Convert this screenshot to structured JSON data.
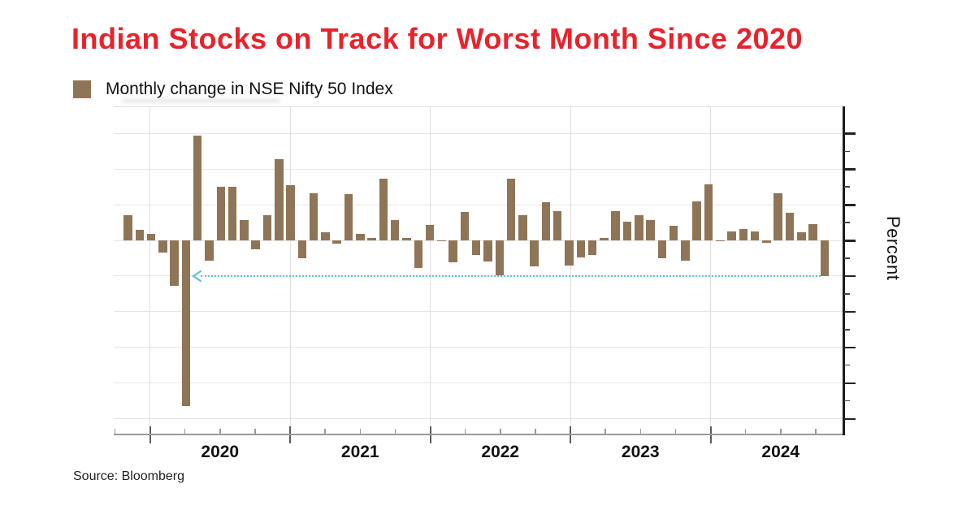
{
  "header": {
    "title": "Indian Stocks on Track for Worst Month Since 2020",
    "title_color": "#e8232b"
  },
  "legend": {
    "label": "Monthly change in NSE Nifty 50 Index",
    "swatch_color": "#8f7557"
  },
  "source": {
    "text": "Source: Bloomberg"
  },
  "chart_data": {
    "type": "bar",
    "title": "Indian Stocks on Track for Worst Month Since 2020",
    "series_name": "Monthly change in NSE Nifty 50 Index",
    "ylabel": "Percent",
    "xlabel": "",
    "x_tick_labels": [
      "2020",
      "2021",
      "2022",
      "2023",
      "2024"
    ],
    "ylim": [
      -27.5,
      18.5
    ],
    "y_major_step": 5,
    "y_minor_step": 2.5,
    "grid": "on-light",
    "legend_position": "top-left",
    "bar_color": "#8f7557",
    "months": [
      "2019-10",
      "2019-11",
      "2019-12",
      "2020-01",
      "2020-02",
      "2020-03",
      "2020-04",
      "2020-05",
      "2020-06",
      "2020-07",
      "2020-08",
      "2020-09",
      "2020-10",
      "2020-11",
      "2020-12",
      "2021-01",
      "2021-02",
      "2021-03",
      "2021-04",
      "2021-05",
      "2021-06",
      "2021-07",
      "2021-08",
      "2021-09",
      "2021-10",
      "2021-11",
      "2021-12",
      "2022-01",
      "2022-02",
      "2022-03",
      "2022-04",
      "2022-05",
      "2022-06",
      "2022-07",
      "2022-08",
      "2022-09",
      "2022-10",
      "2022-11",
      "2022-12",
      "2023-01",
      "2023-02",
      "2023-03",
      "2023-04",
      "2023-05",
      "2023-06",
      "2023-07",
      "2023-08",
      "2023-09",
      "2023-10",
      "2023-11",
      "2023-12",
      "2024-01",
      "2024-02",
      "2024-03",
      "2024-04",
      "2024-05",
      "2024-06",
      "2024-07",
      "2024-08",
      "2024-09",
      "2024-10"
    ],
    "values": [
      3.5,
      1.5,
      0.9,
      -1.7,
      -6.4,
      -23.2,
      14.7,
      -2.8,
      7.5,
      7.5,
      2.8,
      -1.2,
      3.5,
      11.4,
      7.8,
      -2.5,
      6.6,
      1.1,
      -0.4,
      6.5,
      0.9,
      0.3,
      8.7,
      2.8,
      0.3,
      -3.9,
      2.2,
      -0.1,
      -3.1,
      4.0,
      -2.1,
      -3.0,
      -4.9,
      8.7,
      3.5,
      -3.7,
      5.4,
      4.1,
      -3.5,
      -2.4,
      -2.0,
      0.3,
      4.1,
      2.6,
      3.5,
      2.9,
      -2.5,
      2.0,
      -2.8,
      5.5,
      7.9,
      -0.1,
      1.2,
      1.6,
      1.2,
      -0.3,
      6.6,
      3.9,
      1.1,
      2.3,
      -5.0
    ],
    "annotation": {
      "type": "dotted-arrow-line",
      "y_percent": -5,
      "start_month": "2020-04",
      "end_month": "2024-10",
      "arrow": "left",
      "color": "#5bc2d8",
      "meaning": "October 2024 drop matches the worst monthly levels since 2020"
    }
  }
}
